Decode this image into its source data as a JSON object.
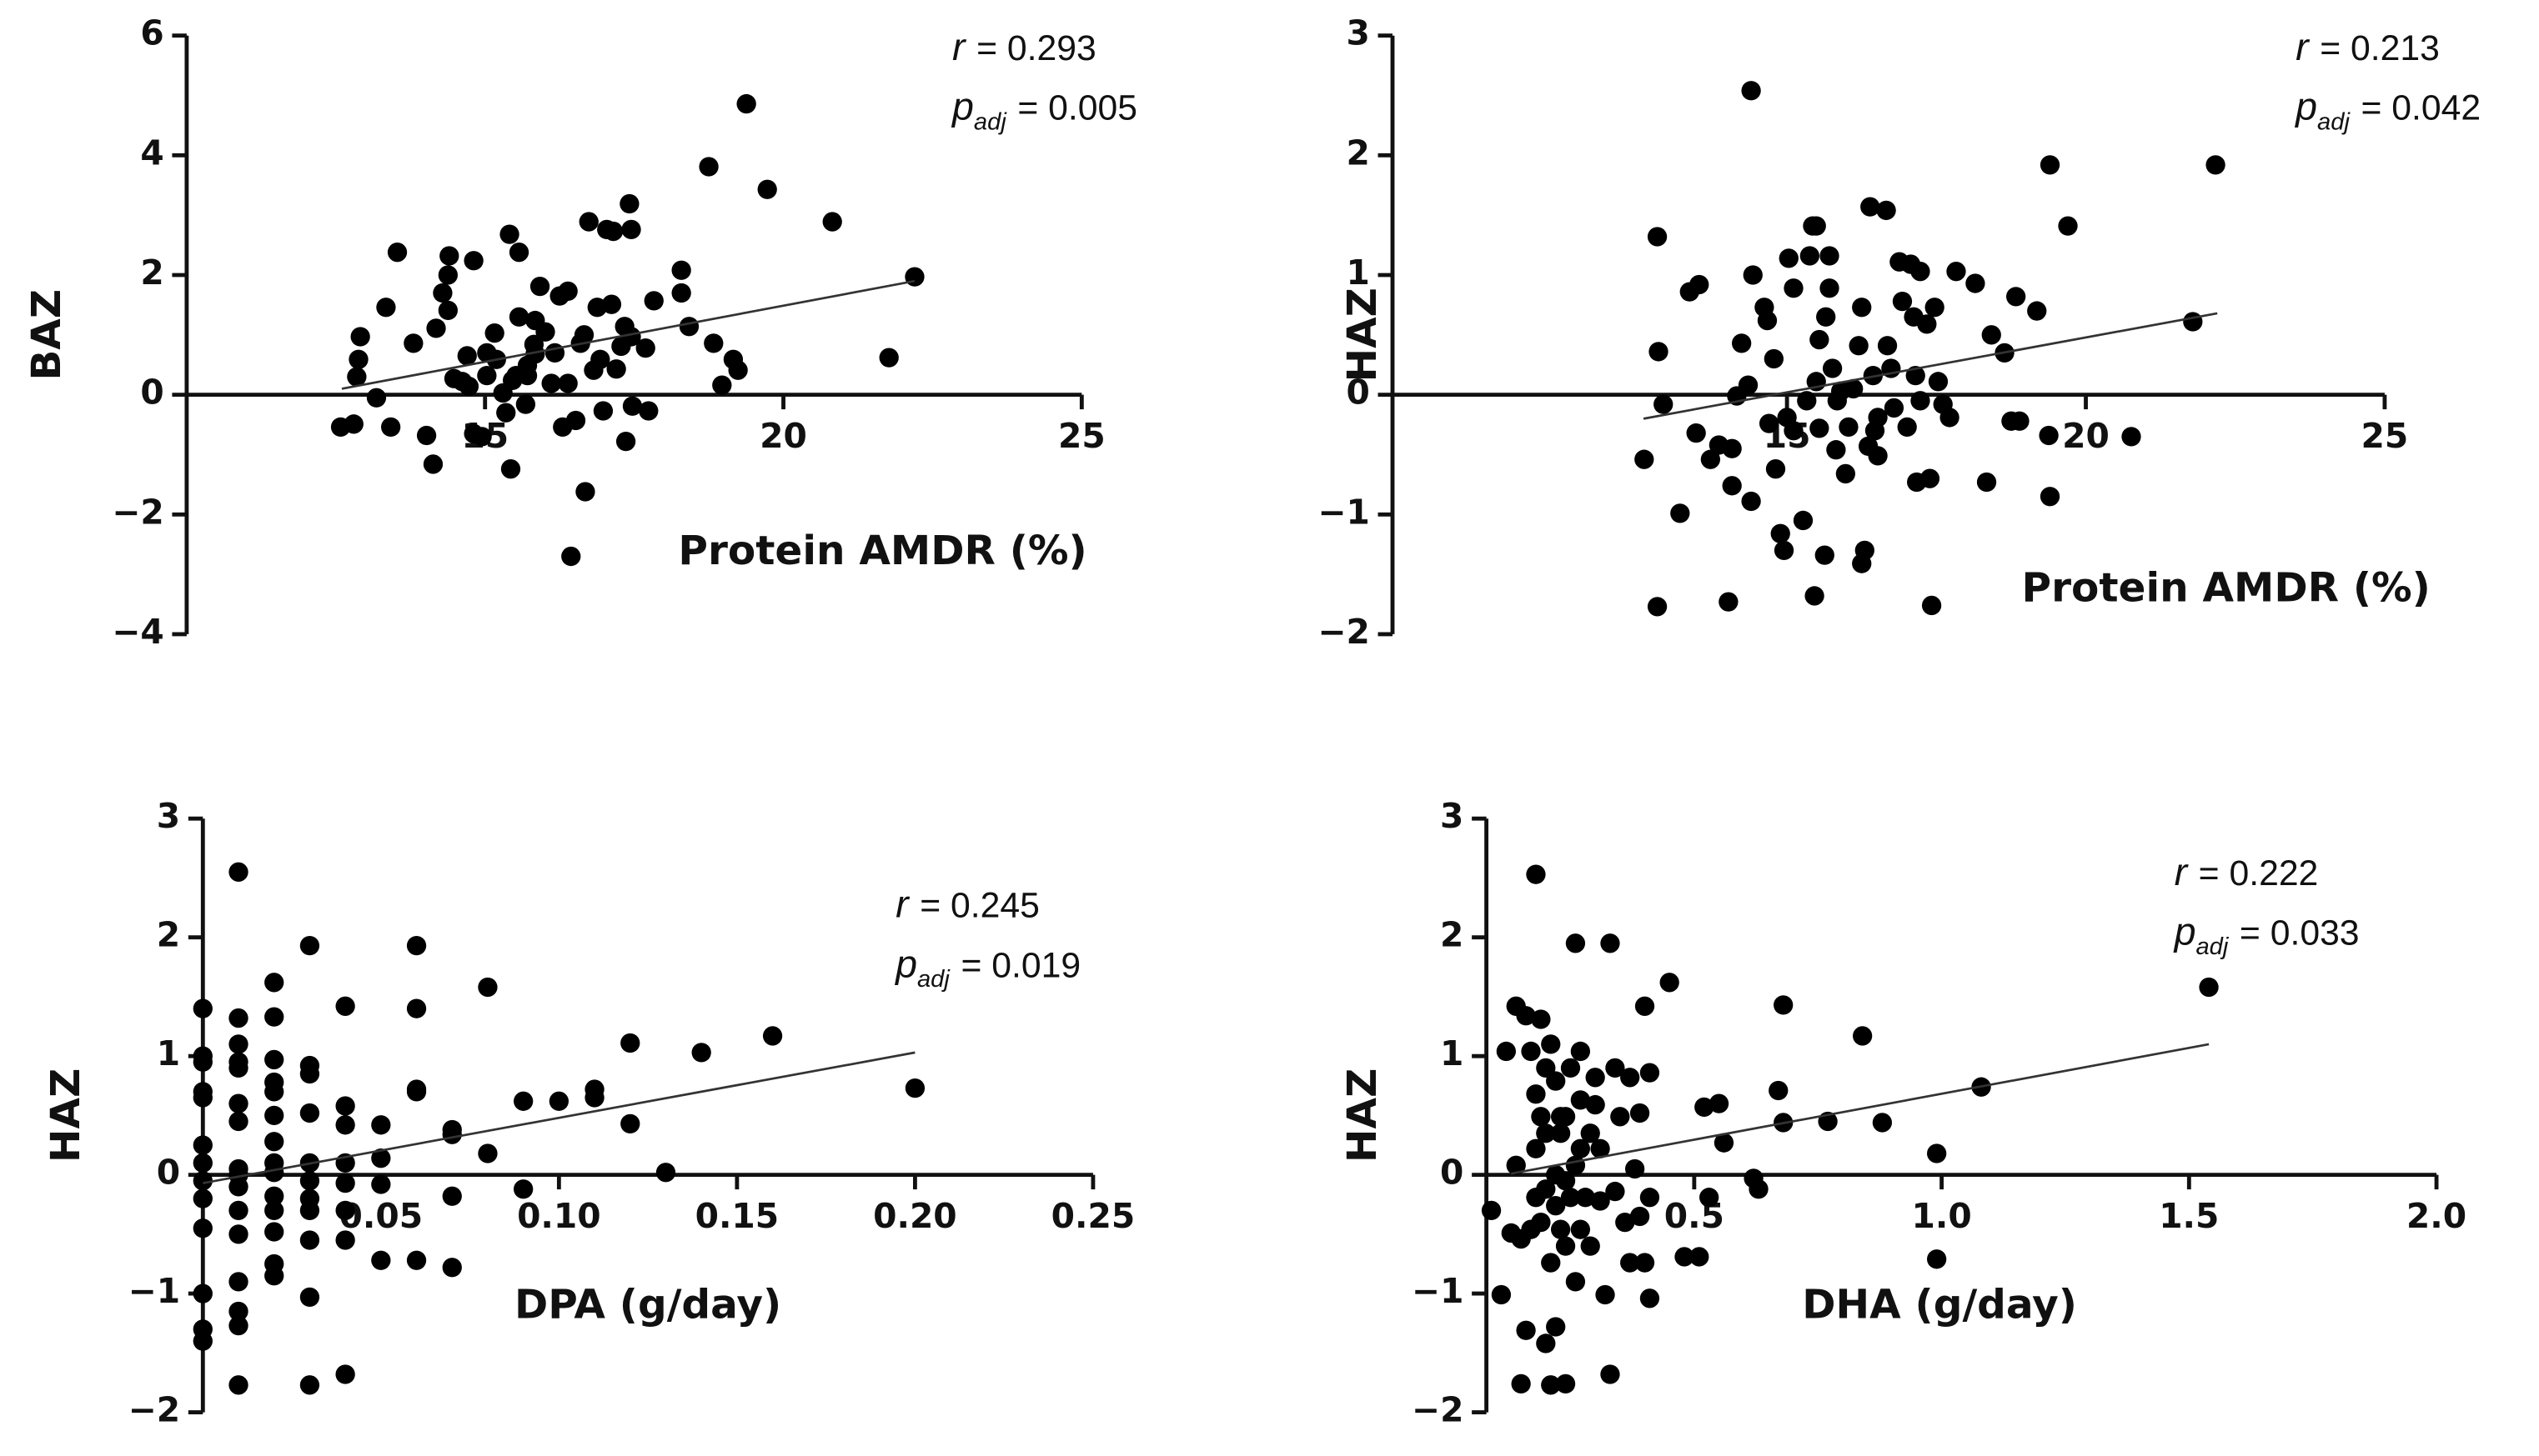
{
  "chart_data": [
    {
      "type": "scatter",
      "y_label": "BAZ",
      "x_label": "Protein AMDR (%)",
      "color": "#000000",
      "annotations": [
        {
          "symbol": "r",
          "text": "= 0.293"
        },
        {
          "symbol": "p",
          "subscript": "adj",
          "text": "= 0.005"
        }
      ],
      "xlim": [
        10,
        25
      ],
      "ylim": [
        -4,
        6
      ],
      "xticks": [
        15,
        20,
        25
      ],
      "yticks": [
        6,
        4,
        2,
        0,
        {
          "value": -2,
          "label": "−2"
        },
        {
          "value": -4,
          "label": "−4"
        }
      ],
      "x": [
        12.91,
        12.88,
        12.85,
        12.58,
        12.8,
        13.18,
        13.42,
        13.53,
        13.34,
        13.8,
        14.02,
        14.13,
        14.18,
        14.29,
        14.38,
        14.4,
        14.38,
        14.48,
        14.62,
        14.73,
        14.7,
        14.81,
        14.81,
        14.95,
        15.03,
        15.16,
        15.19,
        15.03,
        15.3,
        15.35,
        15.41,
        15.43,
        15.46,
        15.52,
        15.57,
        15.57,
        15.68,
        15.71,
        15.71,
        15.84,
        15.82,
        15.92,
        15.84,
        16.01,
        16.11,
        16.17,
        16.25,
        16.3,
        16.39,
        16.39,
        16.44,
        16.52,
        16.6,
        16.66,
        16.68,
        16.74,
        16.82,
        16.88,
        16.93,
        16.98,
        17.04,
        17.12,
        17.15,
        17.2,
        17.28,
        17.34,
        17.36,
        17.42,
        17.45,
        17.45,
        17.47,
        17.69,
        17.74,
        17.83,
        18.29,
        18.29,
        18.42,
        18.75,
        18.83,
        18.97,
        19.16,
        19.24,
        19.38,
        19.73,
        20.82,
        21.77,
        22.2
      ],
      "y": [
        0.97,
        0.59,
        0.3,
        -0.54,
        -0.49,
        -0.05,
        -0.54,
        2.38,
        1.46,
        0.86,
        -0.68,
        -1.16,
        1.11,
        1.7,
        1.41,
        2.32,
        2.0,
        0.27,
        0.22,
        0.14,
        0.65,
        2.24,
        -0.65,
        -0.7,
        0.32,
        1.03,
        0.59,
        0.7,
        0.03,
        -0.3,
        2.68,
        -1.24,
        0.24,
        0.32,
        2.38,
        1.3,
        -0.16,
        0.32,
        0.49,
        0.68,
        0.84,
        1.81,
        1.24,
        1.05,
        0.19,
        0.7,
        1.65,
        -0.54,
        1.73,
        0.19,
        -2.7,
        -0.43,
        0.86,
        1.0,
        -1.62,
        2.89,
        0.41,
        1.46,
        0.59,
        -0.27,
        2.76,
        1.51,
        2.73,
        0.43,
        0.81,
        1.14,
        -0.78,
        3.19,
        2.76,
        0.97,
        -0.19,
        0.78,
        -0.27,
        1.57,
        2.08,
        1.7,
        1.14,
        3.81,
        0.86,
        0.16,
        0.59,
        0.41,
        4.86,
        3.43,
        2.89,
        0.62,
        1.97
      ],
      "fit": {
        "x": [
          12.6,
          22.2
        ],
        "y": [
          0.1,
          1.9
        ]
      }
    },
    {
      "type": "scatter",
      "y_label": "HAZ",
      "x_label": "Protein AMDR (%)",
      "color": "#000000",
      "annotations": [
        {
          "symbol": "r",
          "text": "= 0.213"
        },
        {
          "symbol": "p",
          "subscript": "adj",
          "text": "= 0.042"
        }
      ],
      "xlim": [
        8.4,
        25
      ],
      "ylim": [
        -2,
        3
      ],
      "xticks": [
        15,
        20,
        25
      ],
      "yticks": [
        3,
        2,
        1,
        0,
        {
          "value": -1,
          "label": "−1"
        },
        {
          "value": -2,
          "label": "−2"
        }
      ],
      "x": [
        12.61,
        12.83,
        12.85,
        12.83,
        12.93,
        13.21,
        13.37,
        13.53,
        13.48,
        13.72,
        13.86,
        14.02,
        14.08,
        14.08,
        14.16,
        14.24,
        14.35,
        14.4,
        14.43,
        14.4,
        14.62,
        14.67,
        14.7,
        14.78,
        14.81,
        14.89,
        14.95,
        15.0,
        15.03,
        15.11,
        15.11,
        15.27,
        15.33,
        15.38,
        15.43,
        15.46,
        15.49,
        15.49,
        15.54,
        15.54,
        15.63,
        15.65,
        15.71,
        15.71,
        15.76,
        15.82,
        15.84,
        15.9,
        15.98,
        16.03,
        16.11,
        16.2,
        16.25,
        16.25,
        16.3,
        16.36,
        16.39,
        16.44,
        16.47,
        16.52,
        16.52,
        16.66,
        16.68,
        16.74,
        16.79,
        16.88,
        16.93,
        17.01,
        17.07,
        17.12,
        17.15,
        17.17,
        17.23,
        17.23,
        17.34,
        17.39,
        17.42,
        17.47,
        17.53,
        17.61,
        17.72,
        17.83,
        18.15,
        18.34,
        18.42,
        18.64,
        18.75,
        18.83,
        18.89,
        19.18,
        19.38,
        19.4,
        19.4,
        19.7,
        20.76,
        21.79,
        22.17
      ],
      "y": [
        -0.54,
        1.32,
        0.36,
        -1.77,
        -0.08,
        -0.99,
        0.86,
        0.92,
        -0.32,
        -0.54,
        -0.42,
        -1.73,
        -0.45,
        -0.76,
        -0.01,
        0.43,
        0.08,
        2.54,
        1.0,
        -0.89,
        0.73,
        0.62,
        -0.24,
        0.3,
        -0.62,
        -1.16,
        -1.3,
        -0.19,
        1.14,
        -0.3,
        0.89,
        -1.05,
        -0.05,
        1.16,
        1.41,
        -1.68,
        1.41,
        0.11,
        -0.28,
        0.46,
        -1.34,
        0.65,
        1.16,
        0.89,
        0.22,
        -0.46,
        -0.05,
        0.03,
        -0.66,
        -0.27,
        0.05,
        0.41,
        -1.41,
        0.73,
        -1.3,
        -0.43,
        1.57,
        0.16,
        -0.3,
        -0.19,
        -0.51,
        1.54,
        0.41,
        0.22,
        -0.11,
        1.11,
        0.78,
        -0.27,
        1.09,
        0.65,
        0.16,
        -0.73,
        1.03,
        -0.05,
        0.59,
        -0.7,
        -1.76,
        0.73,
        0.11,
        -0.08,
        -0.19,
        1.03,
        0.93,
        -0.73,
        0.5,
        0.35,
        -0.22,
        0.82,
        -0.22,
        0.7,
        -0.34,
        -0.85,
        1.92,
        1.41,
        -0.35,
        0.61,
        1.92
      ],
      "fit": {
        "x": [
          12.6,
          22.2
        ],
        "y": [
          -0.2,
          0.68
        ]
      }
    },
    {
      "type": "scatter",
      "y_label": "HAZ",
      "x_label": "DPA (g/day)",
      "color": "#000000",
      "annotations": [
        {
          "symbol": "r",
          "text": "= 0.245"
        },
        {
          "symbol": "p",
          "subscript": "adj",
          "text": "= 0.019"
        }
      ],
      "xlim": [
        0,
        0.25
      ],
      "ylim": [
        -2,
        3
      ],
      "xticks": [
        0.05,
        {
          "value": 0.1,
          "label": "0.10"
        },
        0.15,
        {
          "value": 0.2,
          "label": "0.20"
        },
        0.25
      ],
      "yticks": [
        3,
        2,
        1,
        0,
        {
          "value": -1,
          "label": "−1"
        },
        {
          "value": -2,
          "label": "−2"
        }
      ],
      "x": [
        0,
        0,
        0,
        0,
        0,
        0,
        0,
        0,
        0,
        0,
        0,
        0,
        0,
        0.01,
        0.01,
        0.01,
        0.01,
        0.01,
        0.01,
        0.01,
        0.01,
        0.01,
        0.01,
        0.01,
        0.01,
        0.01,
        0.01,
        0.01,
        0.01,
        0.02,
        0.02,
        0.02,
        0.02,
        0.02,
        0.02,
        0.02,
        0.02,
        0.02,
        0.02,
        0.02,
        0.02,
        0.02,
        0.02,
        0.03,
        0.03,
        0.03,
        0.03,
        0.03,
        0.03,
        0.03,
        0.03,
        0.03,
        0.03,
        0.03,
        0.04,
        0.04,
        0.04,
        0.04,
        0.04,
        0.04,
        0.04,
        0.04,
        0.05,
        0.05,
        0.05,
        0.05,
        0.06,
        0.06,
        0.06,
        0.06,
        0.06,
        0.07,
        0.07,
        0.07,
        0.07,
        0.08,
        0.08,
        0.09,
        0.09,
        0.1,
        0.11,
        0.11,
        0.12,
        0.12,
        0.13,
        0.14,
        0.16,
        0.2
      ],
      "y": [
        1.4,
        1.0,
        0.95,
        0.7,
        0.65,
        0.25,
        0.1,
        -0.05,
        -0.2,
        -0.45,
        -1.0,
        -1.3,
        -1.4,
        2.55,
        1.32,
        1.1,
        0.95,
        0.9,
        0.6,
        0.45,
        0.05,
        0,
        -0.1,
        -0.3,
        -0.5,
        -0.9,
        -1.15,
        -1.27,
        -1.77,
        1.62,
        1.33,
        0.97,
        0.78,
        0.7,
        0.5,
        0.28,
        0.1,
        0.02,
        -0.18,
        -0.3,
        -0.48,
        -0.75,
        -0.85,
        1.93,
        0.92,
        0.85,
        0.52,
        0.1,
        -0.05,
        -0.2,
        -0.3,
        -0.55,
        -1.03,
        -1.77,
        1.42,
        0.58,
        0.42,
        0.1,
        -0.07,
        -0.3,
        -0.55,
        -1.68,
        0.42,
        0.14,
        -0.08,
        -0.72,
        1.93,
        1.4,
        0.72,
        0.7,
        -0.72,
        0.38,
        0.34,
        -0.18,
        -0.78,
        1.58,
        0.18,
        0.62,
        -0.12,
        0.62,
        0.72,
        0.65,
        1.11,
        0.43,
        0.02,
        1.03,
        1.17,
        0.73
      ],
      "fit": {
        "x": [
          0,
          0.2
        ],
        "y": [
          -0.07,
          1.03
        ]
      }
    },
    {
      "type": "scatter",
      "y_label": "HAZ",
      "x_label": "DHA (g/day)",
      "color": "#000000",
      "annotations": [
        {
          "symbol": "r",
          "text": "= 0.222"
        },
        {
          "symbol": "p",
          "subscript": "adj",
          "text": "= 0.033"
        }
      ],
      "xlim": [
        0.08,
        2.0
      ],
      "ylim": [
        -2,
        3
      ],
      "xticks": [
        0.5,
        {
          "value": 1,
          "label": "1.0"
        },
        1.5,
        {
          "value": 2,
          "label": "2.0"
        }
      ],
      "yticks": [
        3,
        2,
        1,
        0,
        {
          "value": -1,
          "label": "−1"
        },
        {
          "value": -2,
          "label": "−2"
        }
      ],
      "x": [
        0.09,
        0.11,
        0.12,
        0.13,
        0.14,
        0.14,
        0.15,
        0.15,
        0.16,
        0.16,
        0.17,
        0.17,
        0.18,
        0.18,
        0.18,
        0.18,
        0.19,
        0.19,
        0.19,
        0.2,
        0.2,
        0.2,
        0.2,
        0.21,
        0.21,
        0.21,
        0.22,
        0.22,
        0.22,
        0.22,
        0.23,
        0.23,
        0.23,
        0.24,
        0.24,
        0.24,
        0.24,
        0.25,
        0.25,
        0.26,
        0.26,
        0.27,
        0.27,
        0.27,
        0.27,
        0.28,
        0.29,
        0.29,
        0.3,
        0.3,
        0.31,
        0.31,
        0.32,
        0.26,
        0.33,
        0.34,
        0.34,
        0.35,
        0.36,
        0.37,
        0.37,
        0.38,
        0.39,
        0.39,
        0.4,
        0.4,
        0.41,
        0.41,
        0.33,
        0.45,
        0.41,
        0.48,
        0.51,
        0.52,
        0.53,
        0.55,
        0.56,
        0.62,
        0.63,
        0.67,
        0.68,
        0.68,
        0.77,
        0.84,
        0.88,
        0.99,
        0.99,
        1.08,
        1.54
      ],
      "y": [
        -0.3,
        -1.01,
        1.04,
        -0.49,
        1.42,
        0.08,
        -0.54,
        -1.76,
        1.34,
        -1.31,
        1.04,
        -0.46,
        0.68,
        0.22,
        -0.19,
        2.53,
        1.31,
        0.49,
        -0.4,
        -1.42,
        0.9,
        0.35,
        -0.12,
        -0.74,
        -1.77,
        1.1,
        -0.26,
        -1.28,
        0.79,
        0,
        -0.46,
        0.49,
        0.35,
        -0.05,
        -1.76,
        -0.6,
        0.49,
        -0.19,
        0.9,
        0.08,
        -0.9,
        0.22,
        1.04,
        -0.46,
        0.63,
        -0.19,
        0.35,
        -0.6,
        0.82,
        0.59,
        -0.22,
        0.22,
        -1.01,
        1.95,
        -1.68,
        0.9,
        -0.14,
        0.49,
        -0.4,
        -0.74,
        0.82,
        0.05,
        -0.35,
        0.52,
        -0.74,
        1.42,
        0.86,
        -1.04,
        1.95,
        1.62,
        -0.19,
        -0.69,
        -0.69,
        0.57,
        -0.19,
        0.6,
        0.27,
        -0.03,
        -0.12,
        0.71,
        0.44,
        1.43,
        0.45,
        1.17,
        0.44,
        0.18,
        -0.71,
        0.74,
        1.58
      ],
      "fit": {
        "x": [
          0.13,
          1.54
        ],
        "y": [
          0.01,
          1.1
        ]
      }
    }
  ]
}
